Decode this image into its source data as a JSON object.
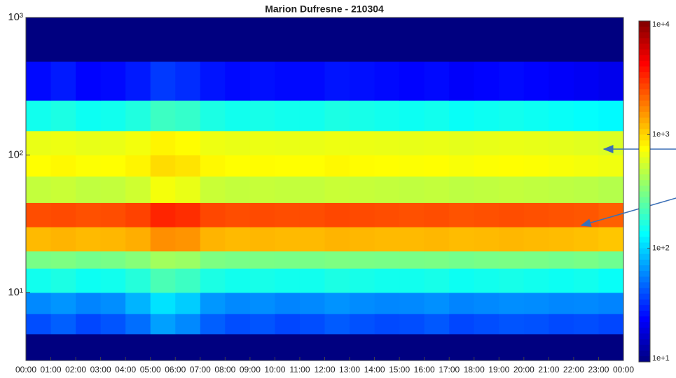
{
  "chart_data": {
    "type": "heatmap",
    "title": "Marion Dufresne - 210304",
    "log_y": true,
    "colormap": "jet",
    "log_color": true,
    "xlim": [
      0,
      24
    ],
    "xticks": [
      {
        "value": 0,
        "label": "00:00"
      },
      {
        "value": 1,
        "label": "01:00"
      },
      {
        "value": 2,
        "label": "02:00"
      },
      {
        "value": 3,
        "label": "03:00"
      },
      {
        "value": 4,
        "label": "04:00"
      },
      {
        "value": 5,
        "label": "05:00"
      },
      {
        "value": 6,
        "label": "06:00"
      },
      {
        "value": 7,
        "label": "07:00"
      },
      {
        "value": 8,
        "label": "08:00"
      },
      {
        "value": 9,
        "label": "09:00"
      },
      {
        "value": 10,
        "label": "10:00"
      },
      {
        "value": 11,
        "label": "11:00"
      },
      {
        "value": 12,
        "label": "12:00"
      },
      {
        "value": 13,
        "label": "13:00"
      },
      {
        "value": 14,
        "label": "14:00"
      },
      {
        "value": 15,
        "label": "15:00"
      },
      {
        "value": 16,
        "label": "16:00"
      },
      {
        "value": 17,
        "label": "17:00"
      },
      {
        "value": 18,
        "label": "18:00"
      },
      {
        "value": 19,
        "label": "19:00"
      },
      {
        "value": 20,
        "label": "20:00"
      },
      {
        "value": 21,
        "label": "21:00"
      },
      {
        "value": 22,
        "label": "22:00"
      },
      {
        "value": 23,
        "label": "23:00"
      },
      {
        "value": 24,
        "label": "00:00"
      }
    ],
    "ylim": [
      3.2,
      1000
    ],
    "yticks": [
      {
        "value": 10,
        "label": "10¹"
      },
      {
        "value": 100,
        "label": "10²"
      },
      {
        "value": 1000,
        "label": "10³"
      }
    ],
    "y_bins": [
      3.2,
      5,
      7,
      10,
      15,
      20,
      30,
      45,
      70,
      100,
      150,
      250,
      480,
      1000
    ],
    "clim": [
      10,
      10000
    ],
    "cticks": [
      {
        "value": 10,
        "label": "1e+1"
      },
      {
        "value": 100,
        "label": "1e+2"
      },
      {
        "value": 1000,
        "label": "1e+3"
      },
      {
        "value": 10000,
        "label": "1e+4"
      }
    ],
    "z": [
      [
        10,
        10,
        10,
        10,
        10,
        10,
        10,
        10,
        10,
        10,
        10,
        10,
        10,
        10,
        10,
        10,
        10,
        10,
        10,
        10,
        10,
        10,
        10,
        10
      ],
      [
        40,
        45,
        38,
        42,
        50,
        70,
        60,
        45,
        40,
        42,
        38,
        40,
        44,
        41,
        39,
        40,
        43,
        38,
        40,
        42,
        41,
        39,
        40,
        38
      ],
      [
        60,
        65,
        58,
        62,
        80,
        110,
        95,
        66,
        60,
        62,
        58,
        60,
        64,
        61,
        59,
        60,
        63,
        58,
        60,
        62,
        61,
        59,
        60,
        58
      ],
      [
        150,
        160,
        145,
        150,
        170,
        220,
        200,
        160,
        150,
        155,
        150,
        150,
        160,
        155,
        150,
        150,
        155,
        145,
        150,
        155,
        150,
        145,
        150,
        140
      ],
      [
        300,
        310,
        290,
        300,
        330,
        400,
        380,
        310,
        300,
        305,
        300,
        300,
        310,
        305,
        300,
        300,
        305,
        290,
        300,
        305,
        300,
        290,
        300,
        280
      ],
      [
        1200,
        1250,
        1200,
        1220,
        1300,
        1600,
        1550,
        1250,
        1200,
        1220,
        1200,
        1200,
        1250,
        1220,
        1200,
        1200,
        1220,
        1180,
        1200,
        1220,
        1200,
        1180,
        1150,
        1100
      ],
      [
        2500,
        2550,
        2450,
        2500,
        2700,
        3300,
        3100,
        2600,
        2500,
        2550,
        2500,
        2500,
        2600,
        2550,
        2500,
        2450,
        2500,
        2400,
        2450,
        2500,
        2450,
        2400,
        2350,
        2200
      ],
      [
        500,
        520,
        490,
        500,
        540,
        700,
        650,
        520,
        500,
        510,
        500,
        500,
        520,
        510,
        500,
        490,
        500,
        480,
        490,
        500,
        490,
        480,
        470,
        450
      ],
      [
        750,
        780,
        740,
        750,
        800,
        950,
        900,
        780,
        750,
        760,
        750,
        750,
        780,
        760,
        750,
        740,
        750,
        720,
        740,
        750,
        740,
        720,
        700,
        680
      ],
      [
        650,
        670,
        640,
        650,
        690,
        800,
        760,
        670,
        650,
        660,
        650,
        650,
        670,
        660,
        650,
        640,
        650,
        630,
        640,
        650,
        640,
        630,
        610,
        590
      ],
      [
        150,
        160,
        145,
        150,
        165,
        200,
        190,
        160,
        150,
        155,
        150,
        150,
        160,
        155,
        150,
        145,
        150,
        140,
        145,
        150,
        145,
        140,
        135,
        130
      ],
      [
        25,
        28,
        24,
        25,
        28,
        35,
        32,
        27,
        25,
        26,
        25,
        25,
        27,
        26,
        25,
        24,
        25,
        23,
        24,
        25,
        24,
        23,
        22,
        21
      ],
      [
        10,
        10,
        10,
        10,
        10,
        10,
        10,
        10,
        10,
        10,
        10,
        10,
        10,
        10,
        10,
        10,
        10,
        10,
        10,
        10,
        10,
        10,
        10,
        10
      ]
    ]
  }
}
